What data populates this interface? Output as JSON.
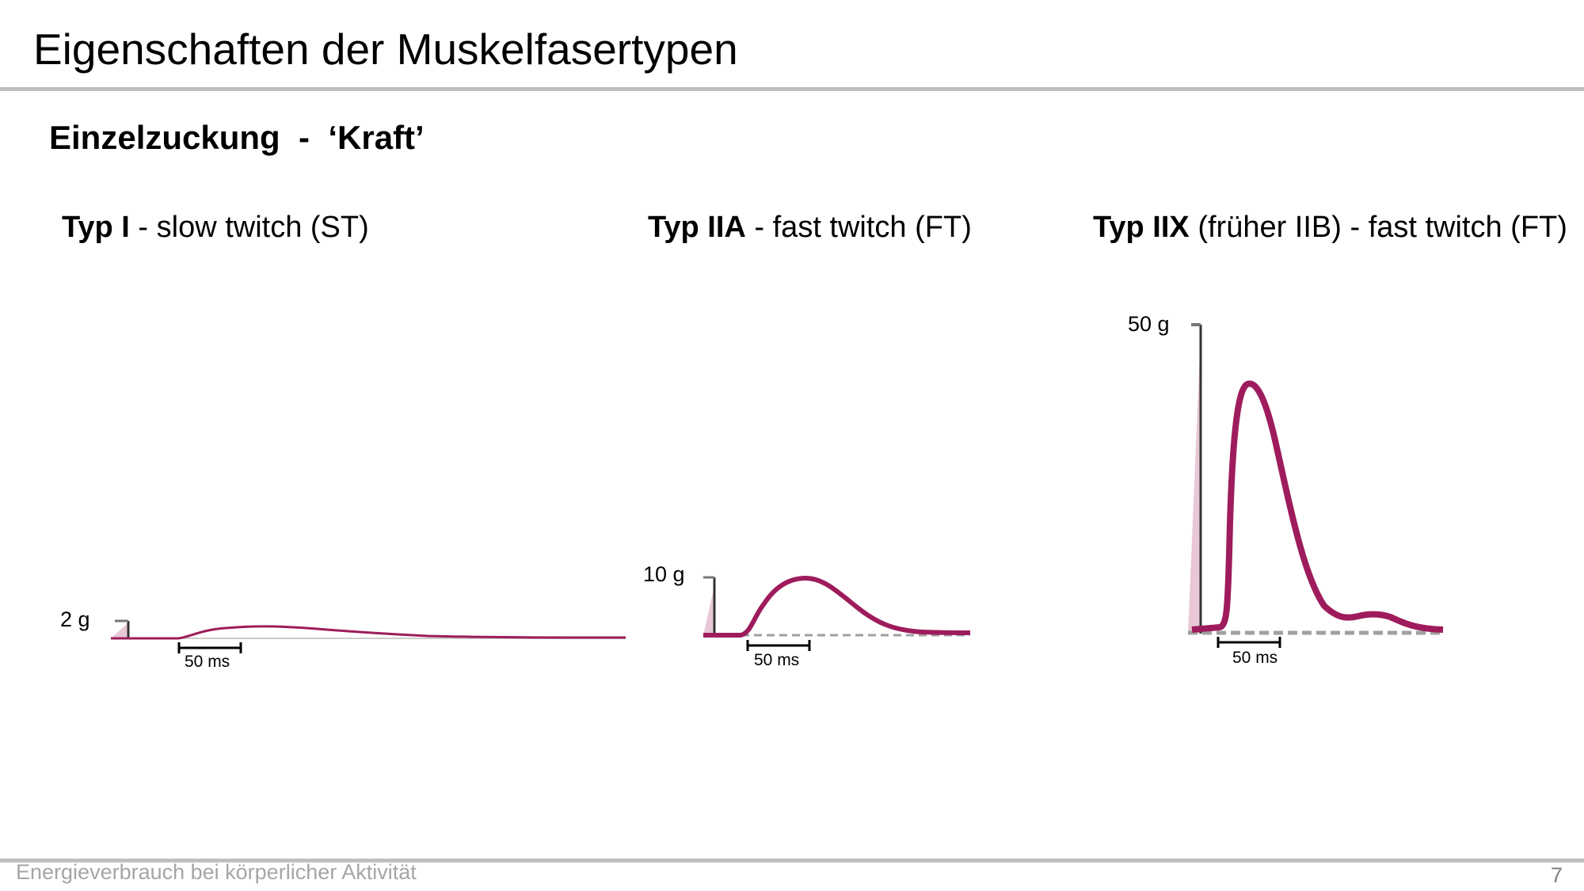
{
  "slide": {
    "title": "Eigenschaften der Muskelfasertypen",
    "subtitle": "Einzelzuckung  -  ‘Kraft’"
  },
  "panels": [
    {
      "type_label": "Typ I",
      "type_desc": " - slow twitch (ST)",
      "force_scale": "2 g",
      "time_scale": "50 ms"
    },
    {
      "type_label": "Typ IIA",
      "type_desc": " - fast twitch (FT)",
      "force_scale": "10 g",
      "time_scale": "50 ms"
    },
    {
      "type_label": "Typ IIX",
      "type_desc": " (früher IIB) - fast twitch (FT)",
      "force_scale": "50 g",
      "time_scale": "50 ms"
    }
  ],
  "colors": {
    "trace": "#9e1c5c",
    "trace_fill": "#e8c7d6",
    "baseline": "#a0a0a0",
    "axis": "#333333",
    "rule": "#bfbfbf",
    "footer_text": "#a6a6a6"
  },
  "footer": {
    "text": "Energieverbrauch bei körperlicher Aktivität",
    "page_number": "7"
  }
}
